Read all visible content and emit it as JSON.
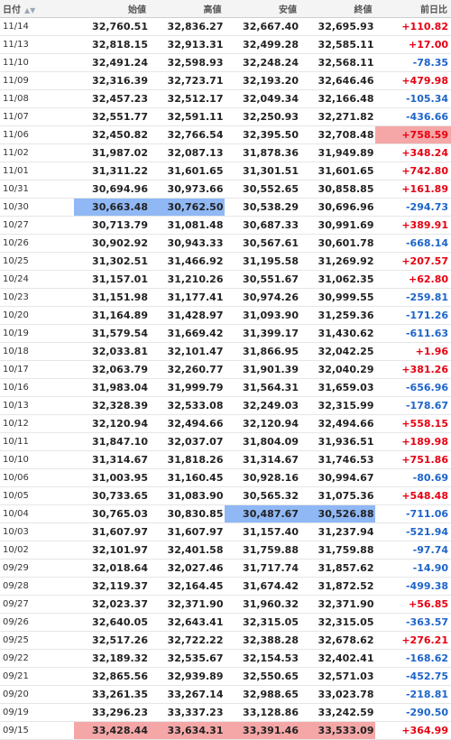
{
  "headers": {
    "date": "日付",
    "open": "始値",
    "high": "高値",
    "low": "安値",
    "close": "終値",
    "change": "前日比",
    "sort_icon": "▲▼"
  },
  "colors": {
    "positive": "#e60012",
    "negative": "#1e64c8",
    "highlight_low": "#8fb8f5",
    "highlight_high": "#f5a7a7"
  },
  "rows": [
    {
      "date": "11/14",
      "open": "32,760.51",
      "high": "32,836.27",
      "low": "32,667.40",
      "close": "32,695.93",
      "change": "+110.82",
      "dir": "up"
    },
    {
      "date": "11/13",
      "open": "32,818.15",
      "high": "32,913.31",
      "low": "32,499.28",
      "close": "32,585.11",
      "change": "+17.00",
      "dir": "up"
    },
    {
      "date": "11/10",
      "open": "32,491.24",
      "high": "32,598.93",
      "low": "32,248.24",
      "close": "32,568.11",
      "change": "-78.35",
      "dir": "down"
    },
    {
      "date": "11/09",
      "open": "32,316.39",
      "high": "32,723.71",
      "low": "32,193.20",
      "close": "32,646.46",
      "change": "+479.98",
      "dir": "up"
    },
    {
      "date": "11/08",
      "open": "32,457.23",
      "high": "32,512.17",
      "low": "32,049.34",
      "close": "32,166.48",
      "change": "-105.34",
      "dir": "down"
    },
    {
      "date": "11/07",
      "open": "32,551.77",
      "high": "32,591.11",
      "low": "32,250.93",
      "close": "32,271.82",
      "change": "-436.66",
      "dir": "down"
    },
    {
      "date": "11/06",
      "open": "32,450.82",
      "high": "32,766.54",
      "low": "32,395.50",
      "close": "32,708.48",
      "change": "+758.59",
      "dir": "up",
      "hl": {
        "change": "red"
      }
    },
    {
      "date": "11/02",
      "open": "31,987.02",
      "high": "32,087.13",
      "low": "31,878.36",
      "close": "31,949.89",
      "change": "+348.24",
      "dir": "up"
    },
    {
      "date": "11/01",
      "open": "31,311.22",
      "high": "31,601.65",
      "low": "31,301.51",
      "close": "31,601.65",
      "change": "+742.80",
      "dir": "up"
    },
    {
      "date": "10/31",
      "open": "30,694.96",
      "high": "30,973.66",
      "low": "30,552.65",
      "close": "30,858.85",
      "change": "+161.89",
      "dir": "up"
    },
    {
      "date": "10/30",
      "open": "30,663.48",
      "high": "30,762.50",
      "low": "30,538.29",
      "close": "30,696.96",
      "change": "-294.73",
      "dir": "down",
      "hl": {
        "open": "blue",
        "high": "blue"
      }
    },
    {
      "date": "10/27",
      "open": "30,713.79",
      "high": "31,081.48",
      "low": "30,687.33",
      "close": "30,991.69",
      "change": "+389.91",
      "dir": "up"
    },
    {
      "date": "10/26",
      "open": "30,902.92",
      "high": "30,943.33",
      "low": "30,567.61",
      "close": "30,601.78",
      "change": "-668.14",
      "dir": "down"
    },
    {
      "date": "10/25",
      "open": "31,302.51",
      "high": "31,466.92",
      "low": "31,195.58",
      "close": "31,269.92",
      "change": "+207.57",
      "dir": "up"
    },
    {
      "date": "10/24",
      "open": "31,157.01",
      "high": "31,210.26",
      "low": "30,551.67",
      "close": "31,062.35",
      "change": "+62.80",
      "dir": "up"
    },
    {
      "date": "10/23",
      "open": "31,151.98",
      "high": "31,177.41",
      "low": "30,974.26",
      "close": "30,999.55",
      "change": "-259.81",
      "dir": "down"
    },
    {
      "date": "10/20",
      "open": "31,164.89",
      "high": "31,428.97",
      "low": "31,093.90",
      "close": "31,259.36",
      "change": "-171.26",
      "dir": "down"
    },
    {
      "date": "10/19",
      "open": "31,579.54",
      "high": "31,669.42",
      "low": "31,399.17",
      "close": "31,430.62",
      "change": "-611.63",
      "dir": "down"
    },
    {
      "date": "10/18",
      "open": "32,033.81",
      "high": "32,101.47",
      "low": "31,866.95",
      "close": "32,042.25",
      "change": "+1.96",
      "dir": "up"
    },
    {
      "date": "10/17",
      "open": "32,063.79",
      "high": "32,260.77",
      "low": "31,901.39",
      "close": "32,040.29",
      "change": "+381.26",
      "dir": "up"
    },
    {
      "date": "10/16",
      "open": "31,983.04",
      "high": "31,999.79",
      "low": "31,564.31",
      "close": "31,659.03",
      "change": "-656.96",
      "dir": "down"
    },
    {
      "date": "10/13",
      "open": "32,328.39",
      "high": "32,533.08",
      "low": "32,249.03",
      "close": "32,315.99",
      "change": "-178.67",
      "dir": "down"
    },
    {
      "date": "10/12",
      "open": "32,120.94",
      "high": "32,494.66",
      "low": "32,120.94",
      "close": "32,494.66",
      "change": "+558.15",
      "dir": "up"
    },
    {
      "date": "10/11",
      "open": "31,847.10",
      "high": "32,037.07",
      "low": "31,804.09",
      "close": "31,936.51",
      "change": "+189.98",
      "dir": "up"
    },
    {
      "date": "10/10",
      "open": "31,314.67",
      "high": "31,818.26",
      "low": "31,314.67",
      "close": "31,746.53",
      "change": "+751.86",
      "dir": "up"
    },
    {
      "date": "10/06",
      "open": "31,003.95",
      "high": "31,160.45",
      "low": "30,928.16",
      "close": "30,994.67",
      "change": "-80.69",
      "dir": "down"
    },
    {
      "date": "10/05",
      "open": "30,733.65",
      "high": "31,083.90",
      "low": "30,565.32",
      "close": "31,075.36",
      "change": "+548.48",
      "dir": "up"
    },
    {
      "date": "10/04",
      "open": "30,765.03",
      "high": "30,830.85",
      "low": "30,487.67",
      "close": "30,526.88",
      "change": "-711.06",
      "dir": "down",
      "hl": {
        "low": "blue",
        "close": "blue"
      }
    },
    {
      "date": "10/03",
      "open": "31,607.97",
      "high": "31,607.97",
      "low": "31,157.40",
      "close": "31,237.94",
      "change": "-521.94",
      "dir": "down"
    },
    {
      "date": "10/02",
      "open": "32,101.97",
      "high": "32,401.58",
      "low": "31,759.88",
      "close": "31,759.88",
      "change": "-97.74",
      "dir": "down"
    },
    {
      "date": "09/29",
      "open": "32,018.64",
      "high": "32,027.46",
      "low": "31,717.74",
      "close": "31,857.62",
      "change": "-14.90",
      "dir": "down"
    },
    {
      "date": "09/28",
      "open": "32,119.37",
      "high": "32,164.45",
      "low": "31,674.42",
      "close": "31,872.52",
      "change": "-499.38",
      "dir": "down"
    },
    {
      "date": "09/27",
      "open": "32,023.37",
      "high": "32,371.90",
      "low": "31,960.32",
      "close": "32,371.90",
      "change": "+56.85",
      "dir": "up"
    },
    {
      "date": "09/26",
      "open": "32,640.05",
      "high": "32,643.41",
      "low": "32,315.05",
      "close": "32,315.05",
      "change": "-363.57",
      "dir": "down"
    },
    {
      "date": "09/25",
      "open": "32,517.26",
      "high": "32,722.22",
      "low": "32,388.28",
      "close": "32,678.62",
      "change": "+276.21",
      "dir": "up"
    },
    {
      "date": "09/22",
      "open": "32,189.32",
      "high": "32,535.67",
      "low": "32,154.53",
      "close": "32,402.41",
      "change": "-168.62",
      "dir": "down"
    },
    {
      "date": "09/21",
      "open": "32,865.56",
      "high": "32,939.89",
      "low": "32,550.65",
      "close": "32,571.03",
      "change": "-452.75",
      "dir": "down"
    },
    {
      "date": "09/20",
      "open": "33,261.35",
      "high": "33,267.14",
      "low": "32,988.65",
      "close": "33,023.78",
      "change": "-218.81",
      "dir": "down"
    },
    {
      "date": "09/19",
      "open": "33,296.23",
      "high": "33,337.23",
      "low": "33,128.86",
      "close": "33,242.59",
      "change": "-290.50",
      "dir": "down"
    },
    {
      "date": "09/15",
      "open": "33,428.44",
      "high": "33,634.31",
      "low": "33,391.46",
      "close": "33,533.09",
      "change": "+364.99",
      "dir": "up",
      "hl": {
        "open": "red",
        "high": "red",
        "low": "red",
        "close": "red"
      }
    }
  ]
}
